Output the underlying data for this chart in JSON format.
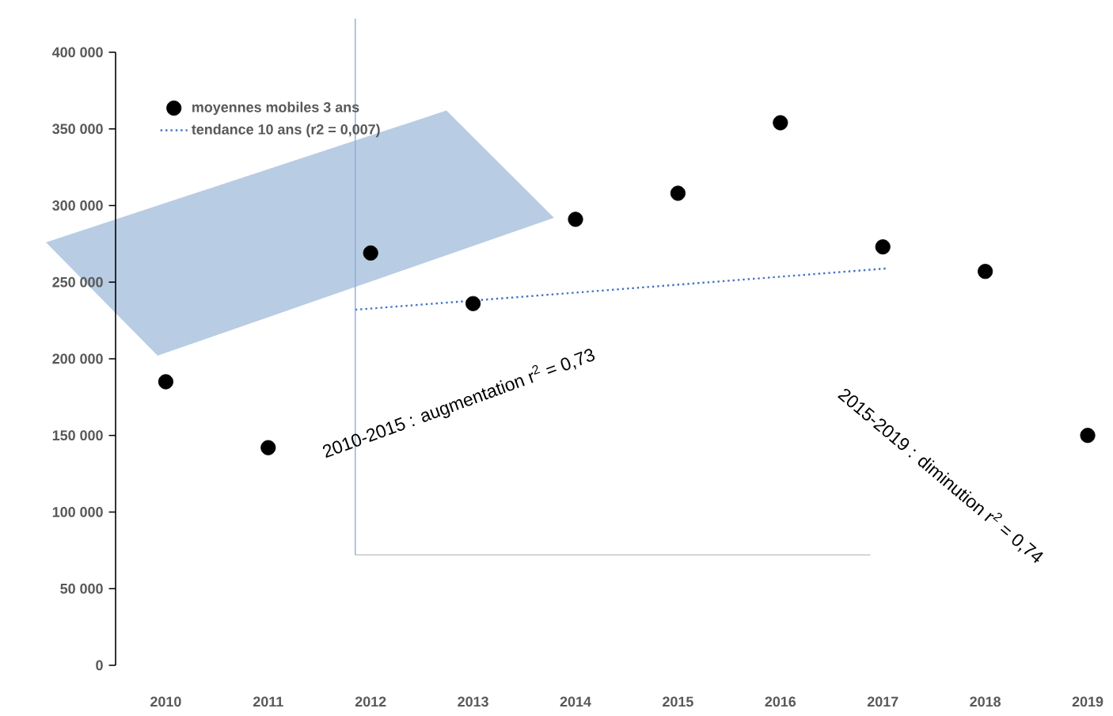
{
  "chart_data": {
    "type": "scatter",
    "x": [
      2010,
      2011,
      2012,
      2013,
      2014,
      2015,
      2016,
      2017,
      2018,
      2019
    ],
    "xlim": [
      2009.51,
      2019
    ],
    "xticks": [
      2010,
      2011,
      2012,
      2013,
      2014,
      2015,
      2016,
      2017,
      2018,
      2019
    ],
    "ylim": [
      0,
      400000
    ],
    "yticks": [
      {
        "value": 0,
        "label": "0"
      },
      {
        "value": 50000,
        "label": "50 000"
      },
      {
        "value": 100000,
        "label": "100 000"
      },
      {
        "value": 150000,
        "label": "150 000"
      },
      {
        "value": 200000,
        "label": "200 000"
      },
      {
        "value": 250000,
        "label": "250 000"
      },
      {
        "value": 300000,
        "label": "300 000"
      },
      {
        "value": 350000,
        "label": "350 000"
      },
      {
        "value": 400000,
        "label": "400 000"
      }
    ],
    "series": [
      {
        "name": "moyennes mobiles 3 ans",
        "marker": "circle",
        "color": "#000000",
        "values": [
          185000,
          142000,
          269000,
          236000,
          291000,
          308000,
          354000,
          273000,
          257000,
          150000
        ]
      },
      {
        "name": "tendance 10 ans (r2 = 0,007)",
        "type": "line",
        "marker": "none",
        "line_style": "dotted",
        "color": "#4472c4",
        "x": [
          2011.85,
          2017.05
        ],
        "values": [
          232000,
          259000
        ]
      }
    ],
    "ref_lines": [
      {
        "axis": "x",
        "value": 2011.85,
        "color": "#8faadc"
      },
      {
        "axis": "y",
        "value": 72000,
        "color": "#bfbfbf"
      }
    ],
    "legend": "top left",
    "grid": false,
    "annotations": [
      "2010-2015 : augmentation r$^{2}$ = 0,73",
      "2015-2019 : diminution r$^{2}$ = 0,74"
    ]
  }
}
